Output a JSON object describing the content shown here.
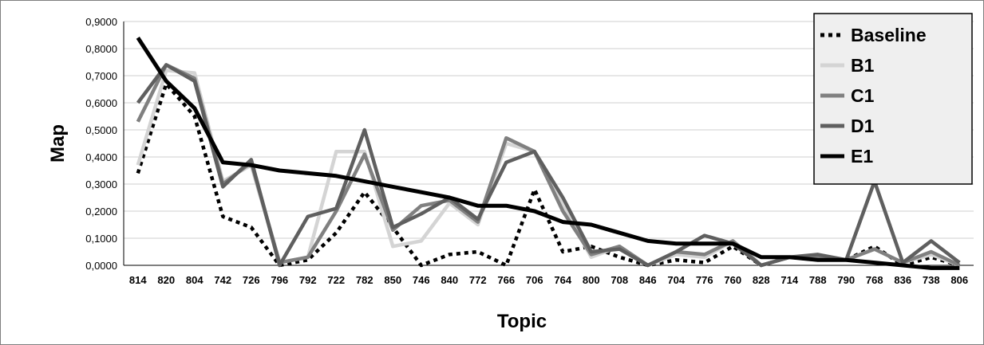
{
  "chart_data": {
    "type": "line",
    "xlabel": "Topic",
    "ylabel": "Map",
    "ylim": [
      0,
      0.9
    ],
    "y_ticks": [
      "0,0000",
      "0,1000",
      "0,2000",
      "0,3000",
      "0,4000",
      "0,5000",
      "0,6000",
      "0,7000",
      "0,8000",
      "0,9000"
    ],
    "grid": true,
    "legend_position": "top-right",
    "categories": [
      "814",
      "820",
      "804",
      "742",
      "726",
      "796",
      "792",
      "722",
      "782",
      "850",
      "746",
      "840",
      "772",
      "766",
      "706",
      "764",
      "800",
      "708",
      "846",
      "704",
      "776",
      "760",
      "828",
      "714",
      "788",
      "790",
      "768",
      "836",
      "738",
      "806"
    ],
    "series": [
      {
        "name": "Baseline",
        "color": "#000000",
        "style": "dotted",
        "values": [
          0.34,
          0.67,
          0.55,
          0.18,
          0.14,
          0.0,
          0.02,
          0.12,
          0.27,
          0.14,
          0.0,
          0.04,
          0.05,
          0.0,
          0.28,
          0.05,
          0.07,
          0.03,
          0.0,
          0.02,
          0.01,
          0.07,
          0.0,
          0.03,
          0.02,
          0.02,
          0.07,
          0.0,
          0.03,
          0.0
        ]
      },
      {
        "name": "B1",
        "color": "#d4d4d4",
        "style": "solid",
        "values": [
          0.37,
          0.72,
          0.71,
          0.31,
          0.37,
          0.01,
          0.03,
          0.42,
          0.42,
          0.07,
          0.09,
          0.23,
          0.15,
          0.45,
          0.42,
          0.22,
          0.03,
          0.07,
          0.0,
          0.04,
          0.03,
          0.09,
          0.0,
          0.03,
          0.03,
          0.02,
          0.06,
          0.01,
          0.04,
          0.0
        ]
      },
      {
        "name": "C1",
        "color": "#808080",
        "style": "solid",
        "values": [
          0.53,
          0.74,
          0.69,
          0.3,
          0.38,
          0.01,
          0.03,
          0.2,
          0.41,
          0.13,
          0.22,
          0.24,
          0.16,
          0.47,
          0.42,
          0.2,
          0.04,
          0.07,
          0.0,
          0.05,
          0.04,
          0.09,
          0.0,
          0.03,
          0.03,
          0.02,
          0.06,
          0.01,
          0.05,
          0.0
        ]
      },
      {
        "name": "D1",
        "color": "#5f5f5f",
        "style": "solid",
        "values": [
          0.6,
          0.74,
          0.68,
          0.29,
          0.39,
          0.0,
          0.18,
          0.21,
          0.5,
          0.14,
          0.19,
          0.25,
          0.17,
          0.38,
          0.42,
          0.25,
          0.05,
          0.06,
          0.0,
          0.05,
          0.11,
          0.08,
          0.0,
          0.03,
          0.04,
          0.02,
          0.31,
          0.01,
          0.09,
          0.01
        ]
      },
      {
        "name": "E1",
        "color": "#000000",
        "style": "solid",
        "values": [
          0.84,
          0.68,
          0.58,
          0.38,
          0.37,
          0.35,
          0.34,
          0.33,
          0.31,
          0.29,
          0.27,
          0.25,
          0.22,
          0.22,
          0.2,
          0.16,
          0.15,
          0.12,
          0.09,
          0.08,
          0.08,
          0.08,
          0.03,
          0.03,
          0.02,
          0.02,
          0.01,
          0.0,
          -0.01,
          -0.01
        ]
      }
    ]
  }
}
